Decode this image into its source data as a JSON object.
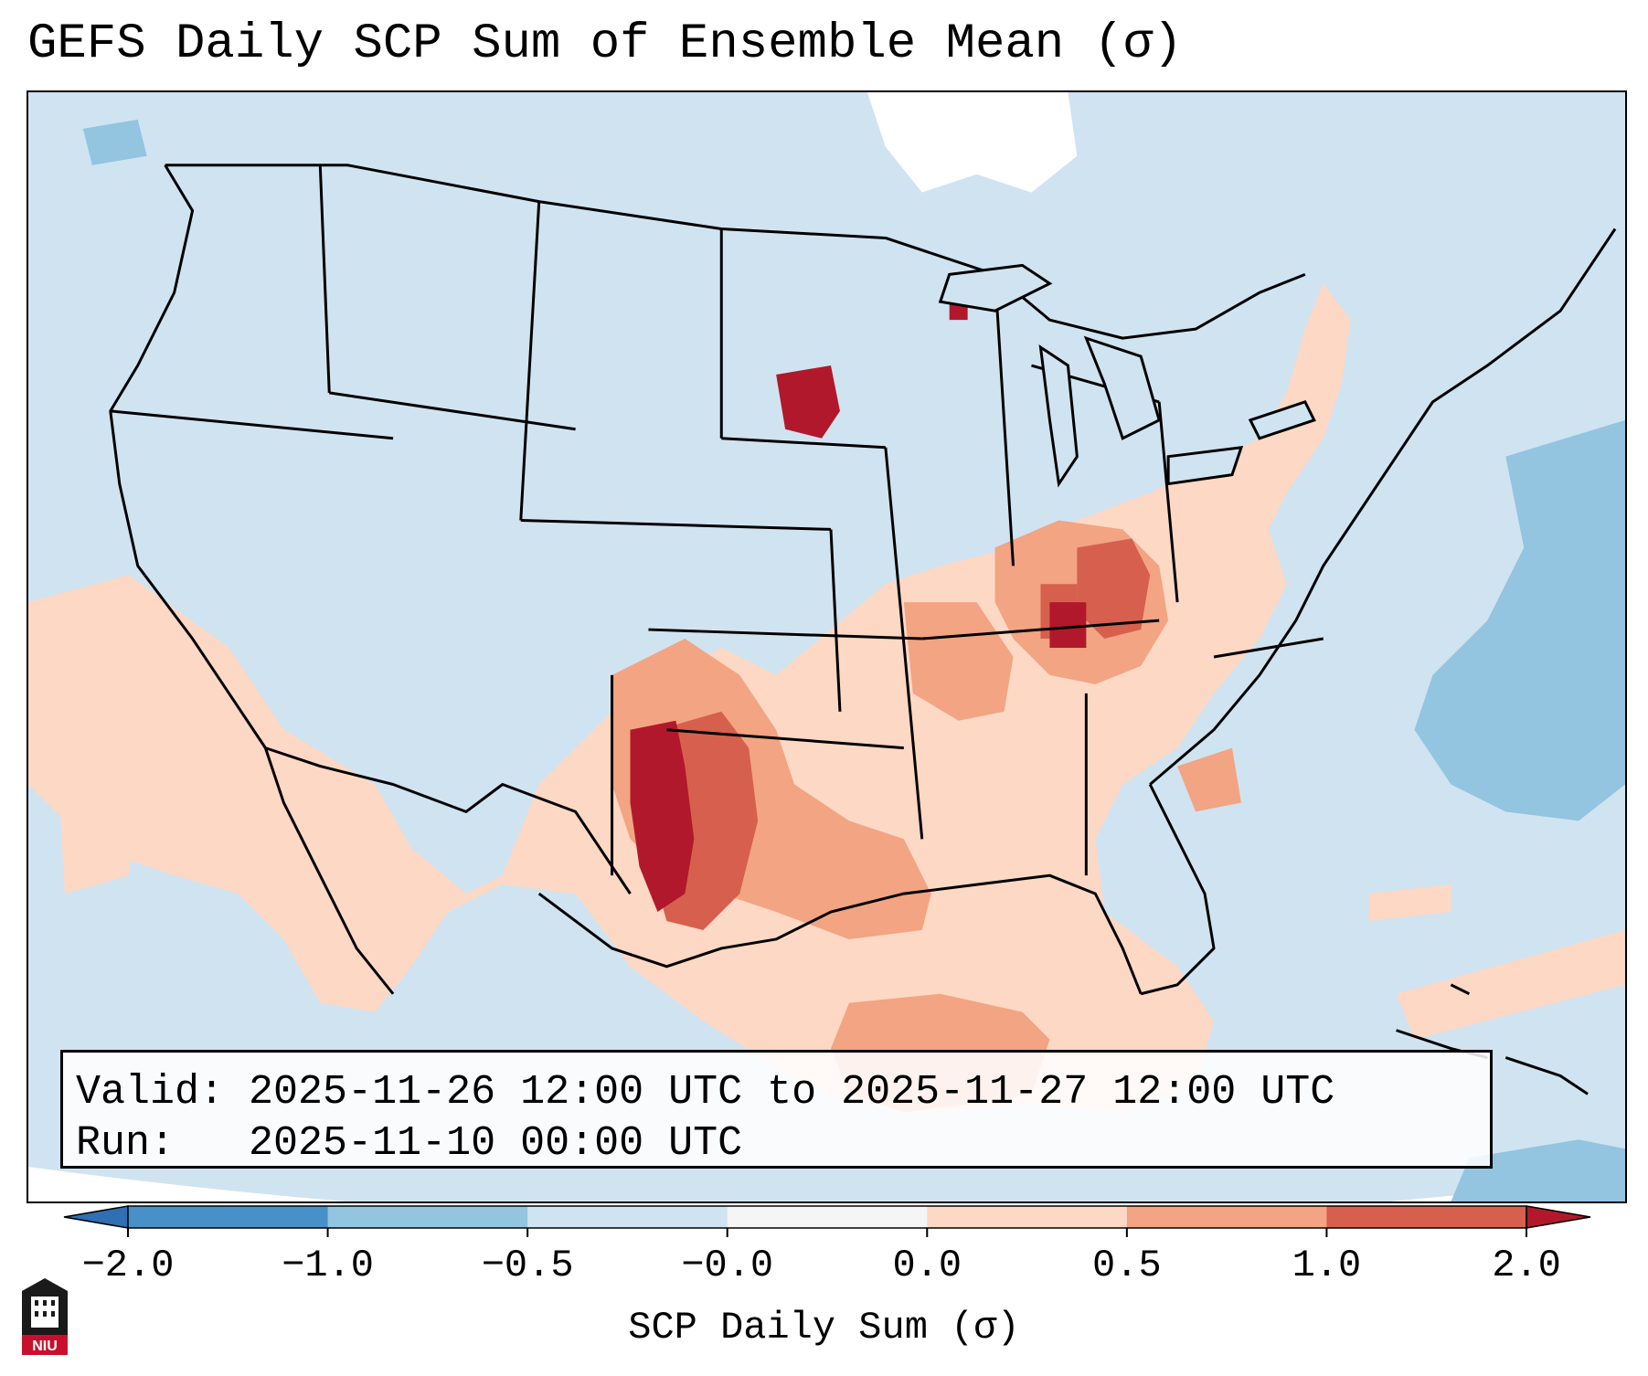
{
  "title": "GEFS Daily SCP Sum of Ensemble Mean (σ)",
  "info": {
    "valid_label": "Valid:",
    "valid_value": "2025-11-26 12:00 UTC to 2025-11-27 12:00 UTC",
    "run_label": "Run:",
    "run_value": "2025-11-10 00:00 UTC"
  },
  "colorbar": {
    "label": "SCP Daily Sum (σ)",
    "ticks": [
      "−2.0",
      "−1.0",
      "−0.5",
      "−0.0",
      "0.0",
      "0.5",
      "1.0",
      "2.0"
    ],
    "colors": {
      "below": "#2f6fb3",
      "bin1": "#4a90c8",
      "bin2": "#93c4e0",
      "bin3": "#d0e3f0",
      "bin4": "#f5f5f5",
      "bin5": "#fdd8c4",
      "bin6": "#f2a483",
      "bin7": "#d6604d",
      "above": "#b2182b"
    }
  },
  "logo": {
    "text": "NIU",
    "color": "#c8102e"
  },
  "map": {
    "background": "#d0e3f0",
    "land_outline": "#000000"
  }
}
